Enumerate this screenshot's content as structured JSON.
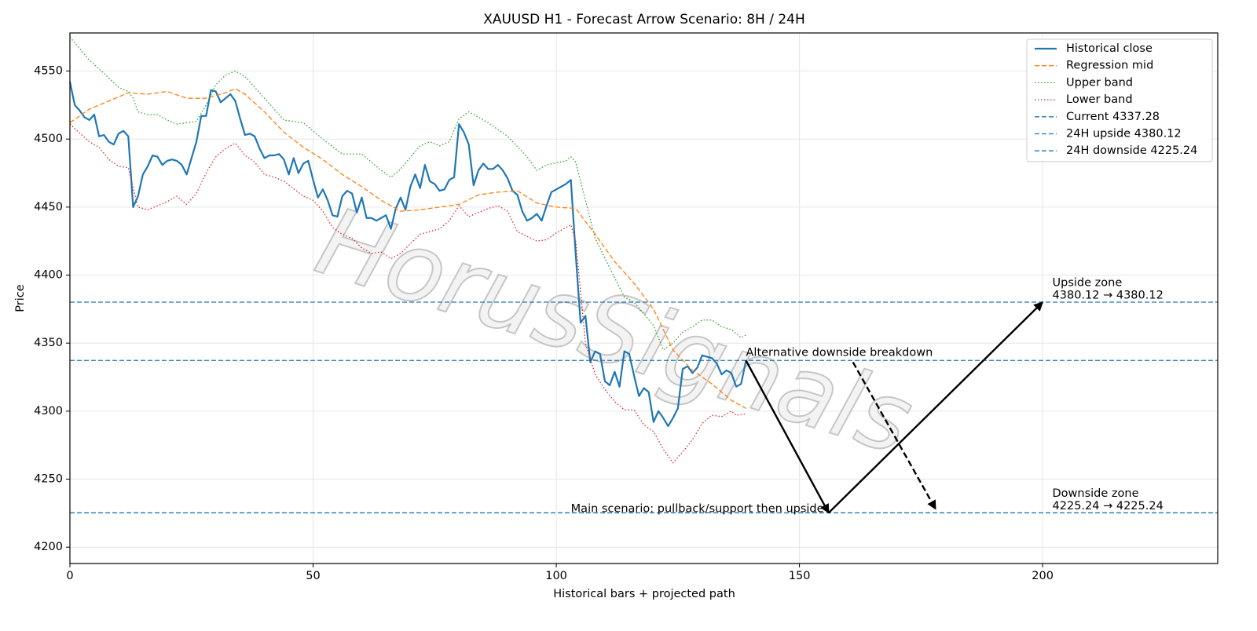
{
  "chart_data": {
    "type": "line",
    "title": "XAUUSD H1 - Forecast Arrow Scenario: 8H / 24H",
    "x_label": "Historical bars + projected path",
    "y_label": "Price",
    "xlim": [
      0,
      236
    ],
    "ylim": [
      4188,
      4578
    ],
    "xticks": [
      0,
      50,
      100,
      150,
      200
    ],
    "yticks": [
      4200,
      4250,
      4300,
      4350,
      4400,
      4450,
      4500,
      4550
    ],
    "grid": true,
    "legend": "upper right",
    "watermark": "HorusSignals",
    "series": [
      {
        "name": "Historical close",
        "color": "#1f77b4",
        "linestyle": "solid",
        "x": [
          0,
          1,
          2,
          3,
          4,
          5,
          6,
          7,
          8,
          9,
          10,
          11,
          12,
          13,
          14,
          15,
          16,
          17,
          18,
          19,
          20,
          21,
          22,
          23,
          24,
          25,
          26,
          27,
          28,
          29,
          30,
          31,
          32,
          33,
          34,
          35,
          36,
          37,
          38,
          39,
          40,
          41,
          42,
          43,
          44,
          45,
          46,
          47,
          48,
          49,
          50,
          51,
          52,
          53,
          54,
          55,
          56,
          57,
          58,
          59,
          60,
          61,
          62,
          63,
          64,
          65,
          66,
          67,
          68,
          69,
          70,
          71,
          72,
          73,
          74,
          75,
          76,
          77,
          78,
          79,
          80,
          81,
          82,
          83,
          84,
          85,
          86,
          87,
          88,
          89,
          90,
          91,
          92,
          93,
          94,
          95,
          96,
          97,
          98,
          99,
          100,
          101,
          102,
          103,
          104,
          105,
          106,
          107,
          108,
          109,
          110,
          111,
          112,
          113,
          114,
          115,
          116,
          117,
          118,
          119,
          120,
          121,
          122,
          123,
          124,
          125,
          126,
          127,
          128,
          129,
          130,
          131,
          132,
          133,
          134,
          135,
          136,
          137,
          138,
          139
        ],
        "values": [
          4542,
          4525,
          4521,
          4516,
          4514,
          4518,
          4502,
          4503,
          4498,
          4496,
          4504,
          4506,
          4502,
          4450,
          4458,
          4474,
          4480,
          4488,
          4487,
          4481,
          4484,
          4485,
          4484,
          4481,
          4474,
          4486,
          4498,
          4517,
          4517,
          4536,
          4535,
          4527,
          4530,
          4533,
          4528,
          4515,
          4503,
          4504,
          4502,
          4493,
          4486,
          4488,
          4488,
          4489,
          4485,
          4474,
          4486,
          4475,
          4482,
          4484,
          4470,
          4457,
          4463,
          4455,
          4444,
          4443,
          4458,
          4462,
          4460,
          4446,
          4457,
          4442,
          4442,
          4440,
          4442,
          4444,
          4434,
          4449,
          4457,
          4448,
          4465,
          4474,
          4464,
          4481,
          4469,
          4467,
          4462,
          4463,
          4470,
          4472,
          4511,
          4505,
          4496,
          4466,
          4477,
          4482,
          4478,
          4478,
          4481,
          4477,
          4471,
          4462,
          4459,
          4447,
          4440,
          4442,
          4445,
          4440,
          4451,
          4461,
          4463,
          4465,
          4467,
          4470,
          4415,
          4365,
          4370,
          4336,
          4344,
          4342,
          4322,
          4319,
          4329,
          4318,
          4344,
          4342,
          4326,
          4311,
          4317,
          4314,
          4292,
          4300,
          4295,
          4289,
          4295,
          4302,
          4331,
          4333,
          4328,
          4332,
          4341,
          4340,
          4339,
          4335,
          4327,
          4330,
          4328,
          4318,
          4320,
          4337
        ]
      },
      {
        "name": "Regression mid",
        "color": "#ff7f0e",
        "linestyle": "dashed",
        "x": [
          0,
          4,
          8,
          12,
          16,
          20,
          24,
          28,
          32,
          34,
          36,
          40,
          44,
          48,
          52,
          56,
          60,
          64,
          68,
          72,
          76,
          80,
          84,
          88,
          92,
          96,
          100,
          104,
          108,
          112,
          116,
          120,
          124,
          128,
          132,
          136,
          139
        ],
        "values": [
          4512,
          4522,
          4528,
          4534,
          4533,
          4535,
          4530,
          4530,
          4534,
          4537,
          4533,
          4520,
          4505,
          4494,
          4485,
          4474,
          4465,
          4455,
          4447,
          4448,
          4450,
          4452,
          4459,
          4461,
          4462,
          4453,
          4450,
          4449,
          4430,
          4410,
          4394,
          4375,
          4345,
          4330,
          4320,
          4308,
          4302
        ]
      },
      {
        "name": "Upper band",
        "color": "#2ca02c",
        "linestyle": "dotted",
        "x": [
          0,
          4,
          8,
          10,
          12,
          13,
          14,
          16,
          18,
          20,
          22,
          26,
          28,
          30,
          32,
          34,
          36,
          40,
          44,
          48,
          52,
          56,
          60,
          64,
          66,
          68,
          72,
          74,
          76,
          78,
          80,
          82,
          86,
          90,
          94,
          96,
          98,
          102,
          103,
          104,
          106,
          108,
          112,
          114,
          116,
          120,
          122,
          124,
          126,
          128,
          130,
          132,
          134,
          136,
          138,
          139
        ],
        "values": [
          4575,
          4558,
          4545,
          4538,
          4535,
          4530,
          4520,
          4518,
          4518,
          4514,
          4511,
          4513,
          4525,
          4540,
          4547,
          4550,
          4546,
          4530,
          4514,
          4512,
          4500,
          4489,
          4489,
          4477,
          4472,
          4478,
          4495,
          4498,
          4495,
          4498,
          4515,
          4520,
          4512,
          4502,
          4487,
          4477,
          4481,
          4484,
          4487,
          4483,
          4455,
          4427,
          4398,
          4384,
          4380,
          4363,
          4345,
          4350,
          4358,
          4362,
          4367,
          4367,
          4362,
          4360,
          4354,
          4356
        ]
      },
      {
        "name": "Lower band",
        "color": "#d62728",
        "linestyle": "dotted",
        "x": [
          0,
          4,
          6,
          8,
          10,
          12,
          14,
          16,
          18,
          20,
          22,
          24,
          26,
          28,
          30,
          32,
          34,
          36,
          38,
          40,
          42,
          44,
          48,
          50,
          52,
          54,
          56,
          58,
          60,
          62,
          64,
          66,
          68,
          70,
          72,
          76,
          78,
          80,
          82,
          86,
          88,
          90,
          92,
          96,
          98,
          100,
          103,
          104,
          106,
          108,
          110,
          112,
          114,
          116,
          118,
          120,
          122,
          124,
          126,
          128,
          130,
          132,
          134,
          136,
          137,
          139
        ],
        "values": [
          4511,
          4498,
          4494,
          4485,
          4480,
          4479,
          4450,
          4448,
          4451,
          4454,
          4458,
          4452,
          4460,
          4475,
          4487,
          4493,
          4497,
          4488,
          4483,
          4474,
          4472,
          4469,
          4458,
          4455,
          4447,
          4435,
          4430,
          4427,
          4420,
          4416,
          4417,
          4412,
          4416,
          4423,
          4430,
          4434,
          4440,
          4451,
          4443,
          4449,
          4451,
          4447,
          4432,
          4425,
          4426,
          4431,
          4437,
          4425,
          4350,
          4327,
          4316,
          4307,
          4301,
          4301,
          4290,
          4285,
          4272,
          4262,
          4270,
          4279,
          4291,
          4297,
          4296,
          4300,
          4297,
          4298
        ]
      }
    ],
    "hlines": [
      {
        "name": "Current 4337.28",
        "value": 4337.28,
        "color": "#1f77b4",
        "linestyle": "dashed"
      },
      {
        "name": "24H upside 4380.12",
        "value": 4380.12,
        "color": "#1f77b4",
        "linestyle": "dashed"
      },
      {
        "name": "24H downside 4225.24",
        "value": 4225.24,
        "color": "#1f77b4",
        "linestyle": "dashed"
      }
    ],
    "arrows": [
      {
        "x": [
          139,
          156
        ],
        "y": [
          4337.28,
          4225.24
        ],
        "linestyle": "solid"
      },
      {
        "x": [
          156,
          200
        ],
        "y": [
          4225.24,
          4380.12
        ],
        "linestyle": "solid"
      },
      {
        "x": [
          161,
          178
        ],
        "y": [
          4336,
          4228
        ],
        "linestyle": "dashed"
      }
    ],
    "annotations": [
      {
        "lines": [
          "Alternative downside breakdown"
        ],
        "x": 139,
        "y": 4343,
        "align": "left"
      },
      {
        "lines": [
          "Main scenario: pullback/support then upside"
        ],
        "x": 155,
        "y": 4228,
        "align": "right"
      },
      {
        "lines": [
          "Upside zone",
          "4380.12 → 4380.12"
        ],
        "x": 202,
        "y": 4385,
        "align": "left"
      },
      {
        "lines": [
          "Downside zone",
          "4225.24 → 4225.24"
        ],
        "x": 202,
        "y": 4230,
        "align": "left"
      }
    ]
  }
}
